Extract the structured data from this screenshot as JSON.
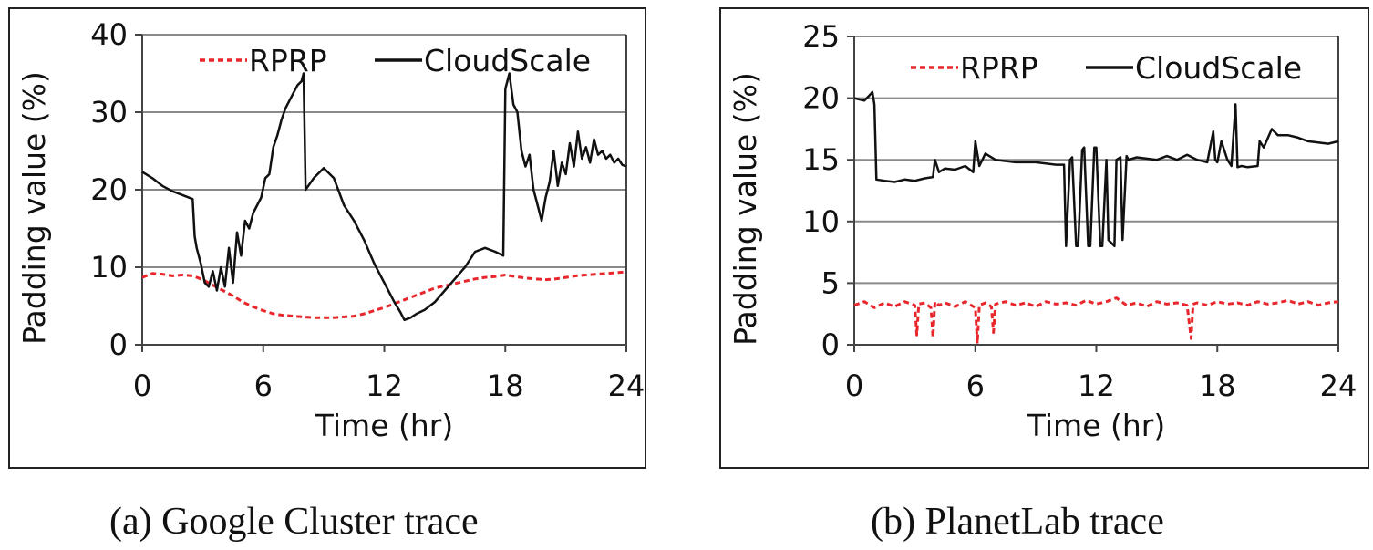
{
  "chart_data": [
    {
      "type": "line",
      "xlabel": "Time (hr)",
      "ylabel": "Padding value (%)",
      "xlim": [
        0,
        24
      ],
      "ylim": [
        0,
        40
      ],
      "xticks": [
        "0",
        "6",
        "12",
        "18",
        "24"
      ],
      "yticks": [
        "0",
        "10",
        "20",
        "30",
        "40"
      ],
      "grid": "horizontal",
      "legend": "top",
      "caption": "(a) Google Cluster trace",
      "series": [
        {
          "name": "RPRP",
          "color": "#e8262b",
          "style": "dashed",
          "x": [
            0,
            0.5,
            1,
            1.5,
            2,
            2.5,
            3,
            3.5,
            4,
            4.5,
            5,
            5.5,
            6,
            6.5,
            7,
            7.5,
            8,
            8.5,
            9,
            9.5,
            10,
            10.5,
            11,
            11.5,
            12,
            12.5,
            13,
            13.5,
            14,
            14.5,
            15,
            15.5,
            16,
            16.5,
            17,
            17.5,
            18,
            18.5,
            19,
            19.5,
            20,
            20.5,
            21,
            21.5,
            22,
            22.5,
            23,
            23.5,
            24
          ],
          "y": [
            8.7,
            9.2,
            9.1,
            8.9,
            9.0,
            8.9,
            8.4,
            7.7,
            7.0,
            6.3,
            5.5,
            4.9,
            4.4,
            4.0,
            3.8,
            3.7,
            3.6,
            3.5,
            3.5,
            3.5,
            3.6,
            3.7,
            4.0,
            4.4,
            4.8,
            5.3,
            5.8,
            6.3,
            6.8,
            7.3,
            7.6,
            7.9,
            8.2,
            8.5,
            8.7,
            8.8,
            9.0,
            8.8,
            8.6,
            8.5,
            8.4,
            8.5,
            8.7,
            8.9,
            9.0,
            9.1,
            9.2,
            9.3,
            9.4
          ]
        },
        {
          "name": "CloudScale",
          "color": "#111111",
          "style": "solid",
          "x": [
            0,
            0.5,
            1,
            1.5,
            2,
            2.5,
            2.6,
            2.7,
            2.9,
            3.1,
            3.3,
            3.5,
            3.7,
            3.9,
            4.1,
            4.3,
            4.5,
            4.7,
            4.9,
            5.1,
            5.3,
            5.5,
            5.7,
            5.9,
            6.1,
            6.3,
            6.5,
            6.7,
            6.9,
            7.1,
            7.3,
            7.5,
            7.7,
            7.9,
            8.0,
            8.1,
            8.5,
            9.0,
            9.5,
            10.0,
            10.5,
            11.0,
            11.5,
            12.0,
            12.5,
            12.8,
            13.0,
            13.3,
            13.6,
            14.0,
            14.5,
            15.0,
            15.5,
            16.0,
            16.5,
            17.0,
            17.5,
            17.9,
            18.0,
            18.2,
            18.4,
            18.6,
            18.8,
            19.0,
            19.2,
            19.4,
            19.6,
            19.8,
            20.0,
            20.2,
            20.4,
            20.6,
            20.8,
            21.0,
            21.2,
            21.4,
            21.6,
            21.8,
            22.0,
            22.2,
            22.4,
            22.6,
            22.8,
            23.0,
            23.2,
            23.4,
            23.6,
            23.8,
            24
          ],
          "y": [
            22.3,
            21.5,
            20.5,
            19.8,
            19.3,
            18.8,
            14.0,
            12.5,
            10.5,
            8.0,
            7.5,
            9.5,
            7.0,
            10.0,
            7.5,
            12.5,
            8.0,
            14.5,
            11.5,
            16.0,
            15.0,
            17.0,
            18.0,
            19.0,
            21.5,
            22.0,
            25.5,
            27.0,
            29.0,
            30.5,
            31.5,
            32.5,
            33.5,
            34.0,
            35.0,
            20.0,
            21.5,
            22.8,
            21.5,
            18.0,
            16.0,
            13.5,
            10.5,
            8.0,
            5.5,
            4.2,
            3.2,
            3.5,
            4.0,
            4.5,
            5.5,
            7.0,
            8.5,
            10.0,
            12.0,
            12.5,
            12.0,
            11.5,
            33.0,
            35.0,
            31.0,
            30.0,
            25.0,
            23.0,
            24.5,
            20.0,
            18.0,
            16.0,
            19.0,
            21.0,
            25.0,
            20.5,
            23.5,
            22.0,
            26.0,
            23.0,
            27.5,
            24.0,
            25.5,
            23.5,
            26.5,
            24.5,
            25.0,
            24.0,
            24.5,
            23.5,
            24.0,
            23.2,
            23.0
          ]
        }
      ]
    },
    {
      "type": "line",
      "xlabel": "Time (hr)",
      "ylabel": "Padding value (%)",
      "xlim": [
        0,
        24
      ],
      "ylim": [
        0,
        25
      ],
      "xticks": [
        "0",
        "6",
        "12",
        "18",
        "24"
      ],
      "yticks": [
        "0",
        "5",
        "10",
        "15",
        "20",
        "25"
      ],
      "grid": "horizontal",
      "legend": "top",
      "caption": "(b) PlanetLab trace",
      "series": [
        {
          "name": "RPRP",
          "color": "#e8262b",
          "style": "dashed",
          "x": [
            0,
            0.5,
            1,
            1.5,
            2,
            2.5,
            3.0,
            3.1,
            3.2,
            3.5,
            3.8,
            3.9,
            4.0,
            4.2,
            4.5,
            5.0,
            5.5,
            6.0,
            6.1,
            6.2,
            6.5,
            6.8,
            6.9,
            7.0,
            7.5,
            8,
            8.5,
            9,
            9.5,
            10,
            10.5,
            11,
            11.5,
            12,
            12.5,
            13,
            13.5,
            14,
            14.5,
            15,
            15.5,
            16,
            16.5,
            16.7,
            16.8,
            17.0,
            17.5,
            18,
            18.5,
            19,
            19.5,
            20,
            20.5,
            21,
            21.5,
            22,
            22.5,
            23,
            23.5,
            24
          ],
          "y": [
            3.2,
            3.5,
            3.0,
            3.4,
            3.1,
            3.5,
            3.2,
            0.8,
            3.3,
            3.4,
            3.0,
            0.6,
            3.5,
            3.2,
            3.4,
            3.1,
            3.5,
            3.0,
            0.1,
            3.2,
            3.4,
            3.1,
            1.0,
            3.3,
            3.5,
            3.2,
            3.4,
            3.1,
            3.5,
            3.3,
            3.4,
            3.2,
            3.6,
            3.3,
            3.5,
            3.8,
            3.2,
            3.4,
            3.1,
            3.5,
            3.3,
            3.4,
            3.2,
            0.5,
            3.3,
            3.4,
            3.2,
            3.5,
            3.3,
            3.4,
            3.2,
            3.5,
            3.3,
            3.4,
            3.6,
            3.3,
            3.5,
            3.2,
            3.4,
            3.5
          ]
        },
        {
          "name": "CloudScale",
          "color": "#111111",
          "style": "solid",
          "x": [
            0,
            0.5,
            0.8,
            0.9,
            1.0,
            1.1,
            1.5,
            2,
            2.5,
            3,
            3.5,
            3.9,
            4.0,
            4.2,
            4.5,
            5,
            5.5,
            5.9,
            6.0,
            6.2,
            6.5,
            7,
            8,
            9,
            10,
            10.4,
            10.5,
            10.7,
            10.8,
            11.0,
            11.1,
            11.3,
            11.4,
            11.6,
            11.7,
            11.9,
            12.0,
            12.2,
            12.3,
            12.5,
            12.6,
            12.9,
            13.0,
            13.2,
            13.3,
            13.5,
            13.6,
            14,
            15,
            15.5,
            16,
            16.5,
            17,
            17.5,
            17.8,
            17.9,
            18.0,
            18.2,
            18.5,
            18.7,
            18.9,
            19.0,
            19.2,
            19.5,
            20,
            20.1,
            20.3,
            20.7,
            21,
            21.5,
            22,
            22.5,
            23,
            23.5,
            24
          ],
          "y": [
            20.0,
            19.8,
            20.3,
            20.5,
            19.5,
            13.4,
            13.3,
            13.2,
            13.4,
            13.3,
            13.5,
            13.6,
            15.0,
            14.0,
            14.3,
            14.2,
            14.5,
            14.0,
            16.5,
            14.5,
            15.5,
            15.0,
            14.8,
            14.8,
            14.6,
            14.6,
            8.0,
            15.0,
            15.2,
            8.0,
            8.0,
            15.8,
            16.0,
            8.0,
            8.0,
            16.0,
            16.0,
            8.0,
            8.0,
            15.0,
            8.5,
            8.0,
            15.0,
            15.2,
            8.5,
            15.3,
            15.0,
            15.2,
            15.0,
            15.3,
            15.0,
            15.4,
            15.0,
            14.8,
            17.3,
            15.0,
            14.8,
            16.5,
            15.0,
            14.5,
            19.5,
            14.4,
            14.5,
            14.4,
            14.5,
            16.5,
            16.0,
            17.5,
            17.0,
            17.0,
            16.8,
            16.5,
            16.4,
            16.3,
            16.5
          ]
        }
      ]
    }
  ]
}
